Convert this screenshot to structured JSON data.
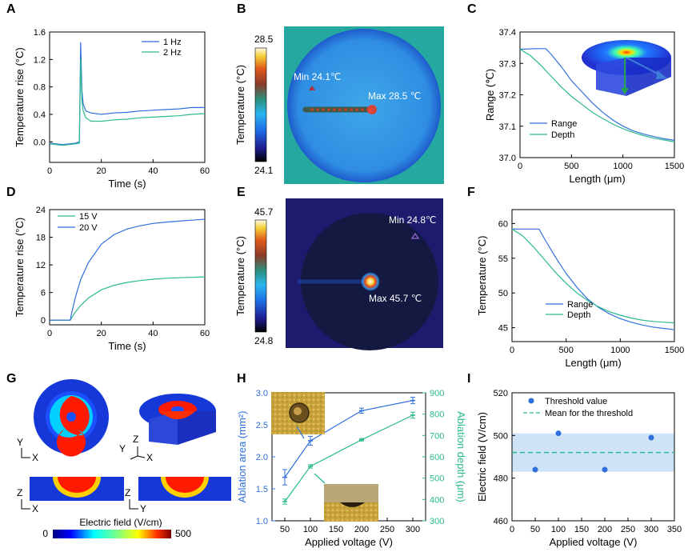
{
  "colors": {
    "blue": "#2f6fdc",
    "green": "#2bb98f",
    "axis": "#000000"
  },
  "panels": {
    "A": {
      "letter": "A"
    },
    "B": {
      "letter": "B"
    },
    "C": {
      "letter": "C"
    },
    "D": {
      "letter": "D"
    },
    "E": {
      "letter": "E"
    },
    "F": {
      "letter": "F"
    },
    "G": {
      "letter": "G"
    },
    "H": {
      "letter": "H"
    },
    "I": {
      "letter": "I"
    }
  },
  "panelB": {
    "cbar_label": "Temperature (°C)",
    "cbar_max": "28.5",
    "cbar_min": "24.1",
    "min_label": "Min 24.1℃",
    "max_label": "Max 28.5 ℃"
  },
  "panelE": {
    "cbar_label": "Temperature (°C)",
    "cbar_max": "45.7",
    "cbar_min": "24.8",
    "min_label": "Min 24.8℃",
    "max_label": "Max 45.7 ℃"
  },
  "panelG": {
    "cbar_label": "Electric field (V/cm)",
    "cbar_min": "0",
    "cbar_max": "500",
    "axes_top_left": {
      "v": "Y",
      "h": "X"
    },
    "axes_top_right": {
      "v": "Z",
      "y": "Y",
      "h": "X"
    },
    "axes_bottom_left": {
      "v": "Z",
      "h": "X"
    },
    "axes_bottom_right": {
      "v": "Z",
      "h": "Y"
    }
  },
  "chart_data": [
    {
      "id": "A",
      "type": "line",
      "xlabel": "Time (s)",
      "ylabel": "Temperature rise (°C)",
      "xlim": [
        0,
        60
      ],
      "ylim": [
        -0.3,
        1.6
      ],
      "xticks": [
        0,
        20,
        40,
        60
      ],
      "yticks": [
        0.0,
        0.4,
        0.8,
        1.2,
        1.6
      ],
      "legend": "top-right",
      "series": [
        {
          "name": "1 Hz",
          "color": "#2f6fdc",
          "x": [
            0,
            5,
            10,
            11.5,
            12,
            12.5,
            13,
            14,
            16,
            20,
            25,
            30,
            35,
            40,
            45,
            50,
            55,
            60
          ],
          "y": [
            -0.02,
            -0.04,
            -0.02,
            0.0,
            1.45,
            0.75,
            0.55,
            0.45,
            0.42,
            0.4,
            0.42,
            0.43,
            0.45,
            0.46,
            0.47,
            0.48,
            0.5,
            0.5
          ]
        },
        {
          "name": "2 Hz",
          "color": "#2bb98f",
          "x": [
            0,
            5,
            10,
            11.5,
            12,
            12.5,
            13,
            14,
            16,
            20,
            25,
            30,
            35,
            40,
            45,
            50,
            55,
            60
          ],
          "y": [
            -0.03,
            -0.05,
            -0.03,
            -0.02,
            1.2,
            0.6,
            0.45,
            0.35,
            0.3,
            0.3,
            0.32,
            0.33,
            0.35,
            0.36,
            0.37,
            0.38,
            0.4,
            0.41
          ]
        }
      ]
    },
    {
      "id": "C",
      "type": "line",
      "xlabel": "Length (μm)",
      "ylabel": "Range (℃)",
      "xlim": [
        0,
        1500
      ],
      "ylim": [
        37.0,
        37.4
      ],
      "xticks": [
        0,
        500,
        1000,
        1500
      ],
      "yticks": [
        37.0,
        37.1,
        37.2,
        37.3,
        37.4
      ],
      "legend": "bottom-left",
      "series": [
        {
          "name": "Range",
          "color": "#2f6fdc",
          "x": [
            0,
            150,
            250,
            300,
            400,
            500,
            600,
            700,
            800,
            900,
            1000,
            1100,
            1200,
            1300,
            1400,
            1500
          ],
          "y": [
            37.345,
            37.347,
            37.347,
            37.33,
            37.29,
            37.245,
            37.21,
            37.175,
            37.145,
            37.12,
            37.1,
            37.085,
            37.075,
            37.067,
            37.06,
            37.055
          ]
        },
        {
          "name": "Depth",
          "color": "#2bb98f",
          "x": [
            0,
            100,
            200,
            300,
            400,
            500,
            600,
            700,
            800,
            900,
            1000,
            1100,
            1200,
            1300,
            1400,
            1500
          ],
          "y": [
            37.345,
            37.325,
            37.295,
            37.26,
            37.225,
            37.195,
            37.17,
            37.145,
            37.125,
            37.107,
            37.092,
            37.08,
            37.07,
            37.062,
            37.056,
            37.05
          ]
        }
      ]
    },
    {
      "id": "D",
      "type": "line",
      "xlabel": "Time (s)",
      "ylabel": "Temperature rise (°C)",
      "xlim": [
        0,
        60
      ],
      "ylim": [
        -1,
        24
      ],
      "xticks": [
        0,
        20,
        40,
        60
      ],
      "yticks": [
        0,
        6,
        12,
        18,
        24
      ],
      "legend": "top-left",
      "series": [
        {
          "name": "15 V",
          "color": "#2bb98f",
          "x": [
            0,
            8,
            8.5,
            10,
            12,
            15,
            20,
            25,
            30,
            35,
            40,
            45,
            50,
            55,
            60
          ],
          "y": [
            0,
            0,
            0.5,
            1.8,
            3.2,
            4.8,
            6.6,
            7.6,
            8.2,
            8.6,
            8.9,
            9.1,
            9.2,
            9.3,
            9.4
          ]
        },
        {
          "name": "20 V",
          "color": "#2f6fdc",
          "x": [
            0,
            8,
            8.5,
            10,
            12,
            15,
            20,
            25,
            30,
            35,
            40,
            45,
            50,
            55,
            60
          ],
          "y": [
            0,
            0,
            1.5,
            5,
            8.8,
            12.5,
            16.5,
            18.6,
            19.8,
            20.5,
            21.0,
            21.3,
            21.5,
            21.7,
            21.9
          ]
        }
      ]
    },
    {
      "id": "F",
      "type": "line",
      "xlabel": "Length (μm)",
      "ylabel": "Temperature (°C)",
      "xlim": [
        0,
        1500
      ],
      "ylim": [
        43,
        62
      ],
      "xticks": [
        0,
        500,
        1000,
        1500
      ],
      "yticks": [
        45,
        50,
        55,
        60
      ],
      "legend": "bottom-center",
      "series": [
        {
          "name": "Range",
          "color": "#2f6fdc",
          "x": [
            0,
            150,
            250,
            300,
            400,
            500,
            600,
            700,
            800,
            900,
            1000,
            1100,
            1200,
            1300,
            1400,
            1500
          ],
          "y": [
            59.2,
            59.2,
            59.2,
            57.8,
            55.2,
            52.8,
            50.8,
            49.1,
            47.9,
            47.0,
            46.3,
            45.8,
            45.4,
            45.1,
            44.9,
            44.7
          ]
        },
        {
          "name": "Depth",
          "color": "#2bb98f",
          "x": [
            0,
            100,
            200,
            300,
            400,
            500,
            600,
            700,
            800,
            900,
            1000,
            1100,
            1200,
            1300,
            1400,
            1500
          ],
          "y": [
            59.2,
            58.2,
            56.6,
            54.8,
            53.0,
            51.4,
            50.0,
            48.9,
            48.0,
            47.3,
            46.8,
            46.4,
            46.1,
            45.9,
            45.8,
            45.7
          ]
        }
      ]
    },
    {
      "id": "H",
      "type": "line",
      "xlabel": "Applied voltage (V)",
      "ylabel": "Ablation area (mm²)",
      "ylabel_right": "Ablation depth (μm)",
      "xlim": [
        25,
        325
      ],
      "ylim": [
        1.0,
        3.0
      ],
      "ylim_right": [
        300,
        900
      ],
      "xticks": [
        50,
        100,
        150,
        200,
        250,
        300
      ],
      "yticks": [
        1.0,
        1.5,
        2.0,
        2.5,
        3.0
      ],
      "yticks_right": [
        300,
        400,
        500,
        600,
        700,
        800,
        900
      ],
      "series": [
        {
          "name": "Ablation area",
          "color": "#2f6fdc",
          "axis": "left",
          "x": [
            50,
            100,
            200,
            300
          ],
          "y": [
            1.68,
            2.25,
            2.72,
            2.88
          ],
          "err": [
            0.12,
            0.07,
            0.04,
            0.05
          ]
        },
        {
          "name": "Ablation depth",
          "color": "#2bb98f",
          "axis": "right",
          "x": [
            50,
            100,
            200,
            300
          ],
          "y": [
            390,
            555,
            680,
            795
          ],
          "err": [
            12,
            8,
            6,
            14
          ]
        }
      ]
    },
    {
      "id": "I",
      "type": "scatter",
      "xlabel": "Applied voltage (V)",
      "ylabel": "Electric field (V/cm)",
      "xlim": [
        0,
        350
      ],
      "ylim": [
        460,
        520
      ],
      "xticks": [
        0,
        50,
        100,
        150,
        200,
        250,
        300,
        350
      ],
      "yticks": [
        460,
        480,
        500,
        520
      ],
      "legend": "top-right",
      "series": [
        {
          "name": "Threshold value",
          "color": "#2f6fdc",
          "x": [
            50,
            100,
            200,
            300
          ],
          "y": [
            484,
            501,
            484,
            499
          ]
        }
      ],
      "mean": {
        "name": "Mean for the threshold",
        "value": 492,
        "band": [
          483,
          501
        ],
        "color": "#2bb98f"
      }
    }
  ]
}
